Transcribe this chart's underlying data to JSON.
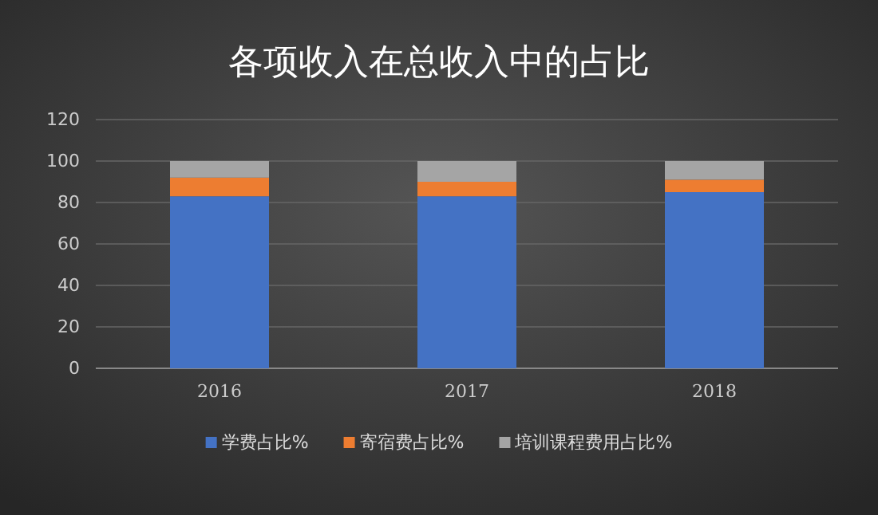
{
  "chart_data": {
    "type": "bar",
    "title": "各项收入在总收入中的占比",
    "categories": [
      "2016",
      "2017",
      "2018"
    ],
    "stacked": true,
    "series": [
      {
        "name": "学费占比%",
        "color": "#4472c4",
        "values": [
          83,
          83,
          85
        ]
      },
      {
        "name": "寄宿费占比%",
        "color": "#ed7d31",
        "values": [
          9,
          7,
          6
        ]
      },
      {
        "name": "培训课程费用占比%",
        "color": "#a5a5a5",
        "values": [
          8,
          10,
          9
        ]
      }
    ],
    "ylim": [
      0,
      120
    ],
    "yticks": [
      0,
      20,
      40,
      60,
      80,
      100,
      120
    ],
    "grid": "y",
    "legend": "bottom"
  }
}
